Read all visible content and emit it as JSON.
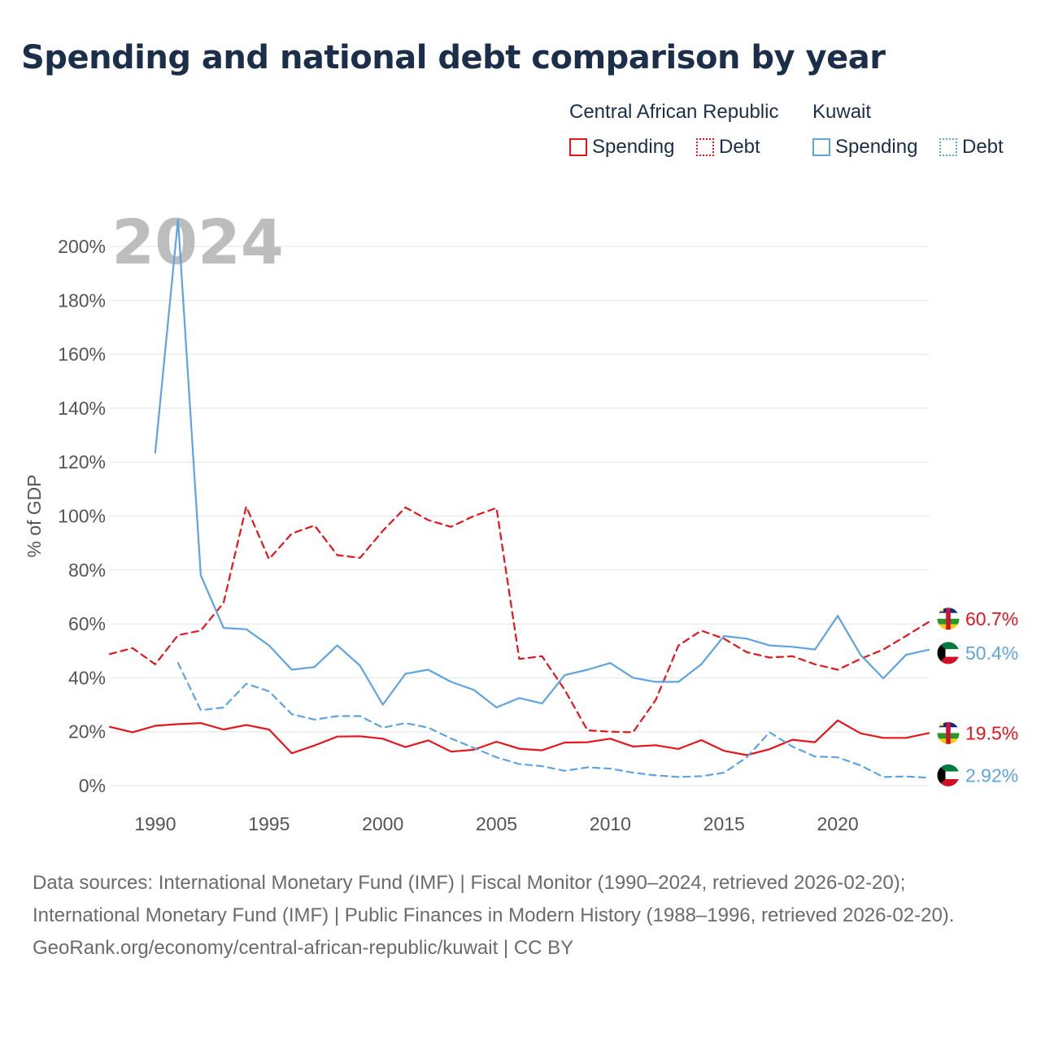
{
  "title": "Spending and national debt comparison by year",
  "legend": {
    "car": {
      "country": "Central African Republic",
      "spending": "Spending",
      "debt": "Debt"
    },
    "kw": {
      "country": "Kuwait",
      "spending": "Spending",
      "debt": "Debt"
    }
  },
  "colors": {
    "car": "#e8141b",
    "kw": "#5ea4e2",
    "title": "#1b2f4b"
  },
  "flags": {
    "car": "central-african-republic-flag-icon",
    "kw": "kuwait-flag-icon"
  },
  "footer": {
    "sources": "Data sources: International Monetary Fund (IMF) | Fiscal Monitor (1990–2024, retrieved 2026-02-20); International Monetary Fund (IMF) | Public Finances in Modern History (1988–1996, retrieved 2026-02-20).",
    "credit": "GeoRank.org/economy/central-african-republic/kuwait | CC BY"
  },
  "chart_data": {
    "type": "line",
    "title": "Spending and national debt comparison by year",
    "xlabel": "",
    "ylabel": "% of GDP",
    "xlim": [
      1988,
      2024
    ],
    "ylim": [
      0,
      200
    ],
    "grid": true,
    "legend_position": "top-right",
    "year_label": "2024",
    "xticks": [
      1990,
      1995,
      2000,
      2005,
      2010,
      2015,
      2020
    ],
    "xtick_labels": [
      "1990",
      "1995",
      "2000",
      "2005",
      "2010",
      "2015",
      "2020"
    ],
    "yticks": [
      0,
      20,
      40,
      60,
      80,
      100,
      120,
      140,
      160,
      180,
      200
    ],
    "ytick_labels": [
      "0%",
      "20%",
      "40%",
      "60%",
      "80%",
      "100%",
      "120%",
      "140%",
      "160%",
      "180%",
      "200%"
    ],
    "series": [
      {
        "name": "Central African Republic Spending",
        "country": "car",
        "style": "solid",
        "end_label": "19.5%",
        "points": [
          [
            1988,
            21.8
          ],
          [
            1989,
            19.8
          ],
          [
            1990,
            22.2
          ],
          [
            1991,
            22.8
          ],
          [
            1992,
            23.2
          ],
          [
            1993,
            20.8
          ],
          [
            1994,
            22.5
          ],
          [
            1995,
            20.8
          ],
          [
            1996,
            12.0
          ],
          [
            1997,
            14.9
          ],
          [
            1998,
            18.2
          ],
          [
            1999,
            18.3
          ],
          [
            2000,
            17.4
          ],
          [
            2001,
            14.3
          ],
          [
            2002,
            16.8
          ],
          [
            2003,
            12.6
          ],
          [
            2004,
            13.3
          ],
          [
            2005,
            16.3
          ],
          [
            2006,
            13.7
          ],
          [
            2007,
            13.1
          ],
          [
            2008,
            16.0
          ],
          [
            2009,
            16.1
          ],
          [
            2010,
            17.4
          ],
          [
            2011,
            14.5
          ],
          [
            2012,
            15.0
          ],
          [
            2013,
            13.6
          ],
          [
            2014,
            16.9
          ],
          [
            2015,
            12.9
          ],
          [
            2016,
            11.3
          ],
          [
            2017,
            13.5
          ],
          [
            2018,
            17.0
          ],
          [
            2019,
            16.1
          ],
          [
            2020,
            24.2
          ],
          [
            2021,
            19.4
          ],
          [
            2022,
            17.7
          ],
          [
            2023,
            17.7
          ],
          [
            2024,
            19.5
          ]
        ]
      },
      {
        "name": "Central African Republic Debt",
        "country": "car",
        "style": "dashed",
        "end_label": "60.7%",
        "points": [
          [
            1988,
            48.8
          ],
          [
            1989,
            51.0
          ],
          [
            1990,
            45.0
          ],
          [
            1991,
            55.8
          ],
          [
            1992,
            57.5
          ],
          [
            1993,
            67.8
          ],
          [
            1994,
            103.5
          ],
          [
            1995,
            84.0
          ],
          [
            1996,
            93.5
          ],
          [
            1997,
            96.5
          ],
          [
            1998,
            85.5
          ],
          [
            1999,
            84.5
          ],
          [
            2000,
            94.5
          ],
          [
            2001,
            103.2
          ],
          [
            2002,
            98.5
          ],
          [
            2003,
            96.0
          ],
          [
            2004,
            100.0
          ],
          [
            2005,
            103.0
          ],
          [
            2006,
            47.0
          ],
          [
            2007,
            48.0
          ],
          [
            2008,
            35.5
          ],
          [
            2009,
            20.5
          ],
          [
            2010,
            20.0
          ],
          [
            2011,
            19.8
          ],
          [
            2012,
            31.8
          ],
          [
            2013,
            52.0
          ],
          [
            2014,
            57.5
          ],
          [
            2015,
            54.5
          ],
          [
            2016,
            49.5
          ],
          [
            2017,
            47.5
          ],
          [
            2018,
            48.0
          ],
          [
            2019,
            45.0
          ],
          [
            2020,
            43.0
          ],
          [
            2021,
            47.0
          ],
          [
            2022,
            50.5
          ],
          [
            2023,
            55.5
          ],
          [
            2024,
            60.7
          ]
        ]
      },
      {
        "name": "Kuwait Spending",
        "country": "kw",
        "style": "solid",
        "end_label": "50.4%",
        "points": [
          [
            1990,
            123.5
          ],
          [
            1991,
            210.0
          ],
          [
            1992,
            78.0
          ],
          [
            1993,
            58.5
          ],
          [
            1994,
            58.0
          ],
          [
            1995,
            52.0
          ],
          [
            1996,
            43.0
          ],
          [
            1997,
            44.0
          ],
          [
            1998,
            52.0
          ],
          [
            1999,
            44.5
          ],
          [
            2000,
            30.0
          ],
          [
            2001,
            41.5
          ],
          [
            2002,
            43.0
          ],
          [
            2003,
            38.5
          ],
          [
            2004,
            35.5
          ],
          [
            2005,
            29.0
          ],
          [
            2006,
            32.5
          ],
          [
            2007,
            30.5
          ],
          [
            2008,
            41.0
          ],
          [
            2009,
            43.0
          ],
          [
            2010,
            45.5
          ],
          [
            2011,
            40.0
          ],
          [
            2012,
            38.5
          ],
          [
            2013,
            38.5
          ],
          [
            2014,
            45.0
          ],
          [
            2015,
            55.5
          ],
          [
            2016,
            54.5
          ],
          [
            2017,
            52.0
          ],
          [
            2018,
            51.5
          ],
          [
            2019,
            50.5
          ],
          [
            2020,
            63.0
          ],
          [
            2021,
            48.5
          ],
          [
            2022,
            39.8
          ],
          [
            2023,
            48.5
          ],
          [
            2024,
            50.4
          ]
        ]
      },
      {
        "name": "Kuwait Debt",
        "country": "kw",
        "style": "dashed",
        "end_label": "2.92%",
        "points": [
          [
            1991,
            45.5
          ],
          [
            1992,
            28.0
          ],
          [
            1993,
            29.0
          ],
          [
            1994,
            37.8
          ],
          [
            1995,
            35.0
          ],
          [
            1996,
            26.5
          ],
          [
            1997,
            24.5
          ],
          [
            1998,
            25.8
          ],
          [
            1999,
            25.8
          ],
          [
            2000,
            21.5
          ],
          [
            2001,
            23.2
          ],
          [
            2002,
            21.5
          ],
          [
            2003,
            17.5
          ],
          [
            2004,
            14.0
          ],
          [
            2005,
            10.5
          ],
          [
            2006,
            8.0
          ],
          [
            2007,
            7.2
          ],
          [
            2008,
            5.5
          ],
          [
            2009,
            6.8
          ],
          [
            2010,
            6.3
          ],
          [
            2011,
            4.8
          ],
          [
            2012,
            3.8
          ],
          [
            2013,
            3.2
          ],
          [
            2014,
            3.5
          ],
          [
            2015,
            4.8
          ],
          [
            2016,
            10.5
          ],
          [
            2017,
            19.8
          ],
          [
            2018,
            14.5
          ],
          [
            2019,
            10.8
          ],
          [
            2020,
            10.5
          ],
          [
            2021,
            7.5
          ],
          [
            2022,
            3.2
          ],
          [
            2023,
            3.4
          ],
          [
            2024,
            2.92
          ]
        ]
      }
    ]
  }
}
